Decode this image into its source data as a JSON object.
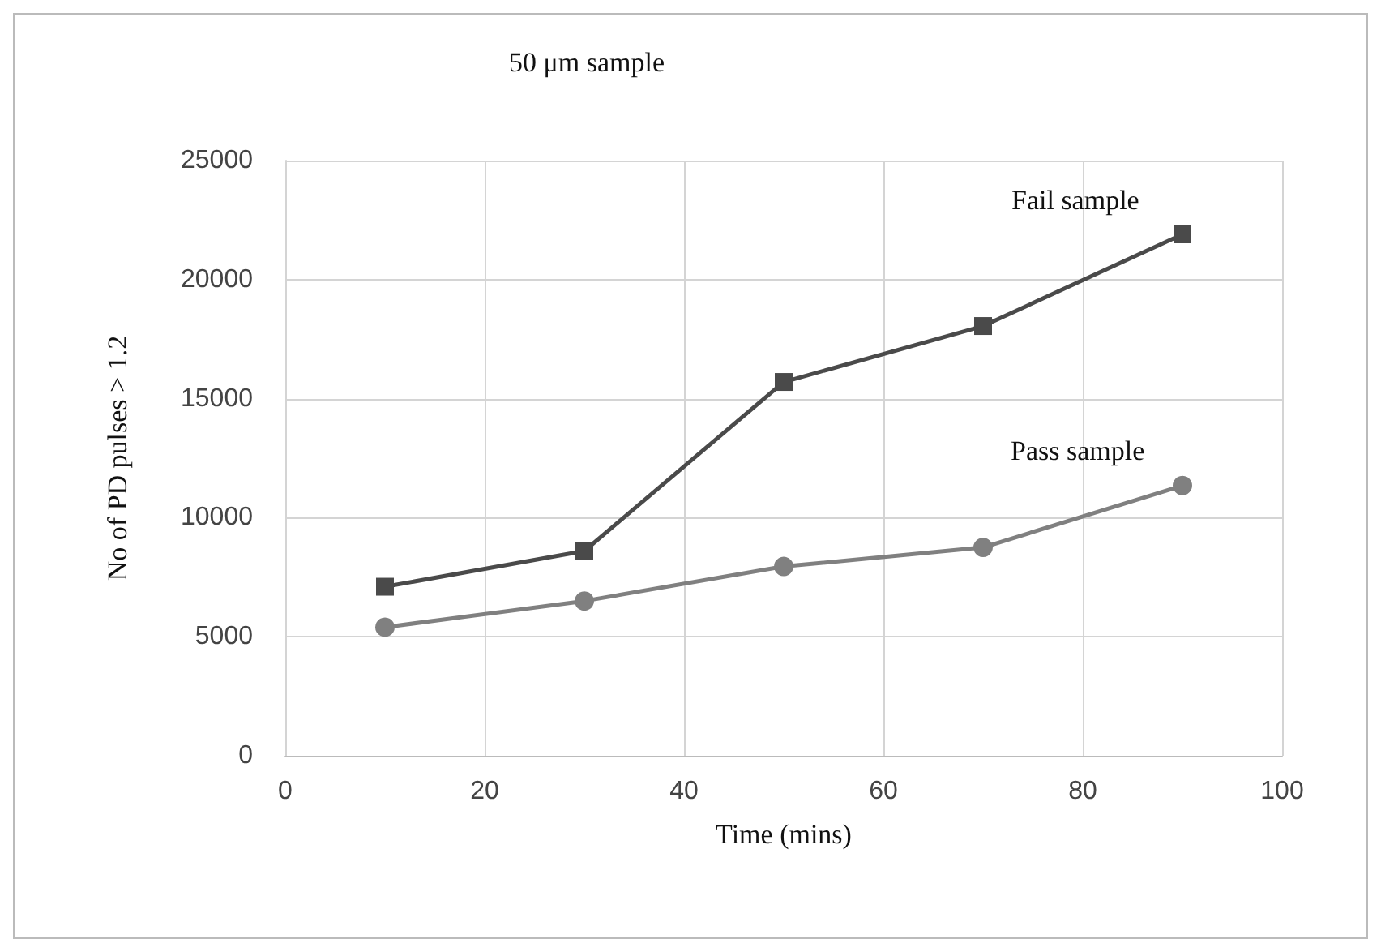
{
  "chart_data": {
    "type": "line",
    "title": "50 μm sample",
    "xlabel": "Time (mins)",
    "ylabel": "No of PD pulses > 1.2",
    "x": [
      10,
      30,
      50,
      70,
      90
    ],
    "series": [
      {
        "name": "Fail sample",
        "color": "#4a4a4a",
        "marker": "square",
        "values": [
          7100,
          8600,
          15700,
          18050,
          21900
        ]
      },
      {
        "name": "Pass sample",
        "color": "#808080",
        "marker": "circle",
        "values": [
          5400,
          6500,
          7950,
          8750,
          11350
        ]
      }
    ],
    "xlim": [
      0,
      100
    ],
    "xticks": [
      0,
      20,
      40,
      60,
      80,
      100
    ],
    "ylim": [
      0,
      25000
    ],
    "yticks": [
      0,
      5000,
      10000,
      15000,
      20000,
      25000
    ],
    "grid": true,
    "legend": false,
    "line_style": "solid"
  }
}
